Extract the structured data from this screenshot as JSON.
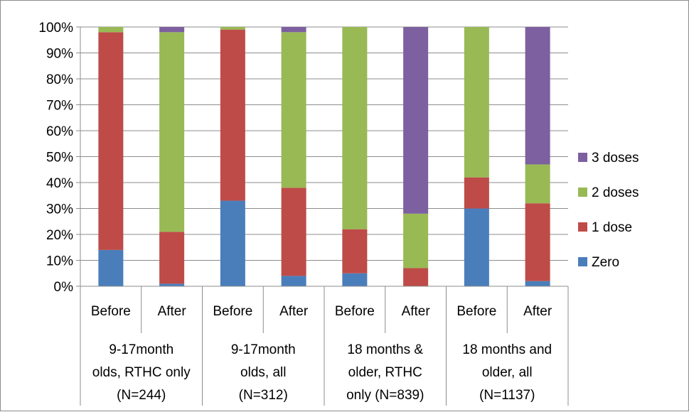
{
  "chart_data": {
    "type": "bar",
    "stacked": true,
    "percent": true,
    "groups": [
      {
        "label_lines": [
          "9-17month",
          "olds, RTHC only",
          "(N=244)"
        ]
      },
      {
        "label_lines": [
          "9-17month",
          "olds, all",
          "(N=312)"
        ]
      },
      {
        "label_lines": [
          "18 months &",
          "older, RTHC",
          "only (N=839)"
        ]
      },
      {
        "label_lines": [
          "18 months and",
          "older, all",
          "(N=1137)"
        ]
      }
    ],
    "categories": [
      "Before",
      "After",
      "Before",
      "After",
      "Before",
      "After",
      "Before",
      "After"
    ],
    "series": [
      {
        "name": "Zero",
        "color": "#4a7ebb",
        "values": [
          14,
          1,
          33,
          4,
          5,
          0,
          30,
          2
        ]
      },
      {
        "name": "1 dose",
        "color": "#be4b48",
        "values": [
          84,
          20,
          66,
          34,
          17,
          7,
          12,
          30
        ]
      },
      {
        "name": "2 doses",
        "color": "#98b954",
        "values": [
          2,
          77,
          1,
          60,
          78,
          21,
          58,
          15
        ]
      },
      {
        "name": "3 doses",
        "color": "#7d60a0",
        "values": [
          0,
          2,
          0,
          2,
          0,
          72,
          0,
          53
        ]
      }
    ],
    "ylim": [
      0,
      100
    ],
    "yticks": [
      "0%",
      "10%",
      "20%",
      "30%",
      "40%",
      "50%",
      "60%",
      "70%",
      "80%",
      "90%",
      "100%"
    ],
    "grid": true,
    "legend_position": "right"
  }
}
